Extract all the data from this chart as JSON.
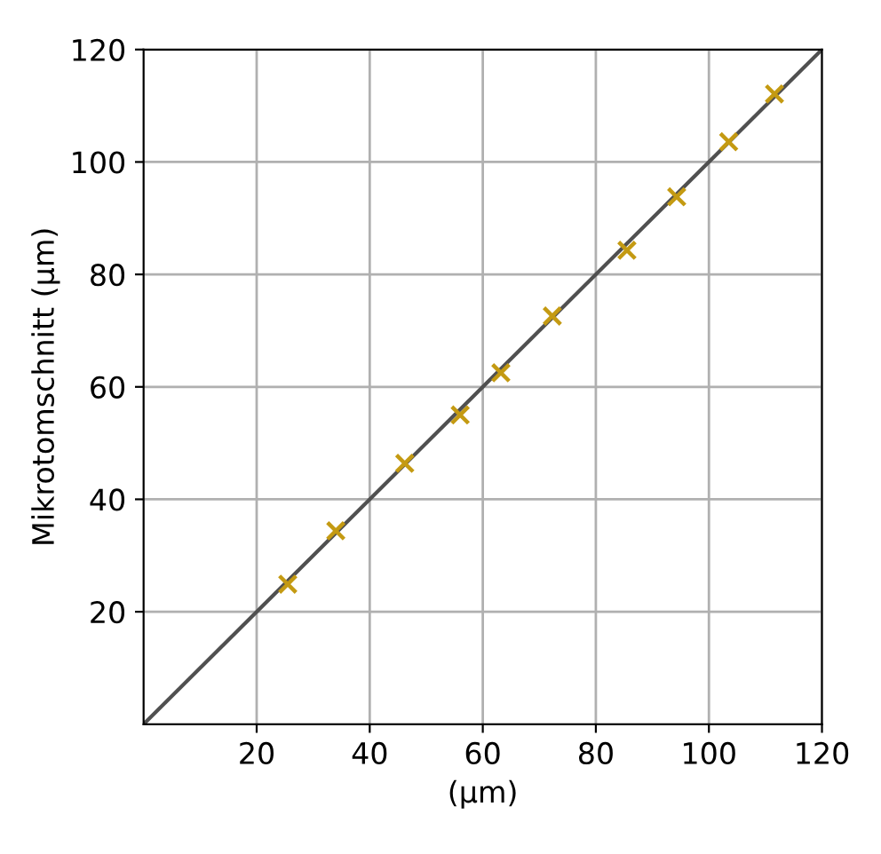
{
  "chart_data": {
    "type": "scatter",
    "xlabel": "(µm)",
    "ylabel": "Mikrotomschnitt (µm)",
    "x": [
      25.5,
      34,
      46.2,
      56,
      63.2,
      72.3,
      85.5,
      94.3,
      103.5,
      111.6
    ],
    "series": [
      {
        "color": "#c49a12",
        "marker": "cross",
        "values": [
          24.9,
          34.4,
          46.4,
          55,
          62.5,
          72.6,
          84.3,
          93.8,
          103.6,
          112.1
        ]
      },
      {
        "type": "line",
        "color": "#505050",
        "marker": "none",
        "line_style": "solid",
        "x": [
          0,
          120
        ],
        "values": [
          0,
          120
        ]
      }
    ],
    "xlim": [
      0,
      120
    ],
    "ylim": [
      0,
      120
    ],
    "xticks": [
      20,
      40,
      60,
      80,
      100,
      120
    ],
    "yticks": [
      20,
      40,
      60,
      80,
      100,
      120
    ],
    "grid": true,
    "legend": false
  }
}
